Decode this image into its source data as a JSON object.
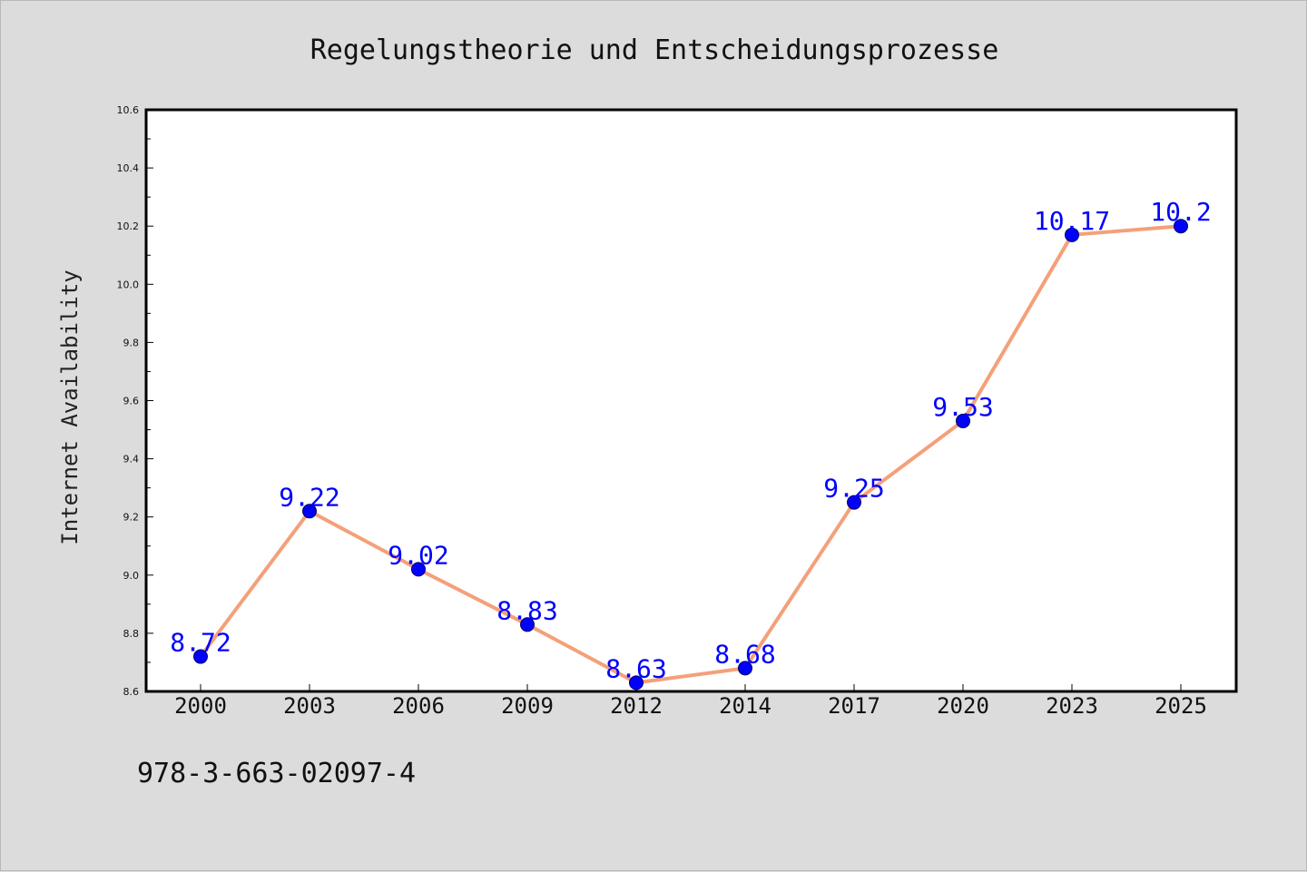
{
  "chart_data": {
    "type": "line",
    "title": "Regelungstheorie und Entscheidungsprozesse",
    "xlabel": "",
    "ylabel": "Internet Availability",
    "categories": [
      "2000",
      "2003",
      "2006",
      "2009",
      "2012",
      "2014",
      "2017",
      "2020",
      "2023",
      "2025"
    ],
    "series": [
      {
        "values": [
          8.72,
          9.22,
          9.02,
          8.83,
          8.63,
          8.68,
          9.25,
          9.53,
          10.17,
          10.2
        ],
        "data_labels": [
          "8.72",
          "9.22",
          "9.02",
          "8.83",
          "8.63",
          "8.68",
          "9.25",
          "9.53",
          "10.17",
          "10.2"
        ],
        "line_color": "#f4a07a",
        "marker_color": "#0000ff"
      }
    ],
    "ylim": [
      8.6,
      10.6
    ],
    "yticks": [
      8.6,
      8.8,
      9.0,
      9.2,
      9.4,
      9.6,
      9.8,
      10.0,
      10.2,
      10.4,
      10.6
    ],
    "ytick_labels": [
      "8.6",
      "8.8",
      "9.0",
      "9.2",
      "9.4",
      "9.6",
      "9.8",
      "10.0",
      "10.2",
      "10.4",
      "10.6"
    ],
    "grid": false,
    "legend": "none"
  },
  "footer": {
    "text": "978-3-663-02097-4"
  },
  "colors": {
    "background": "#dcdcdc",
    "plot_background": "#ffffff",
    "label_color": "#0000ff"
  }
}
